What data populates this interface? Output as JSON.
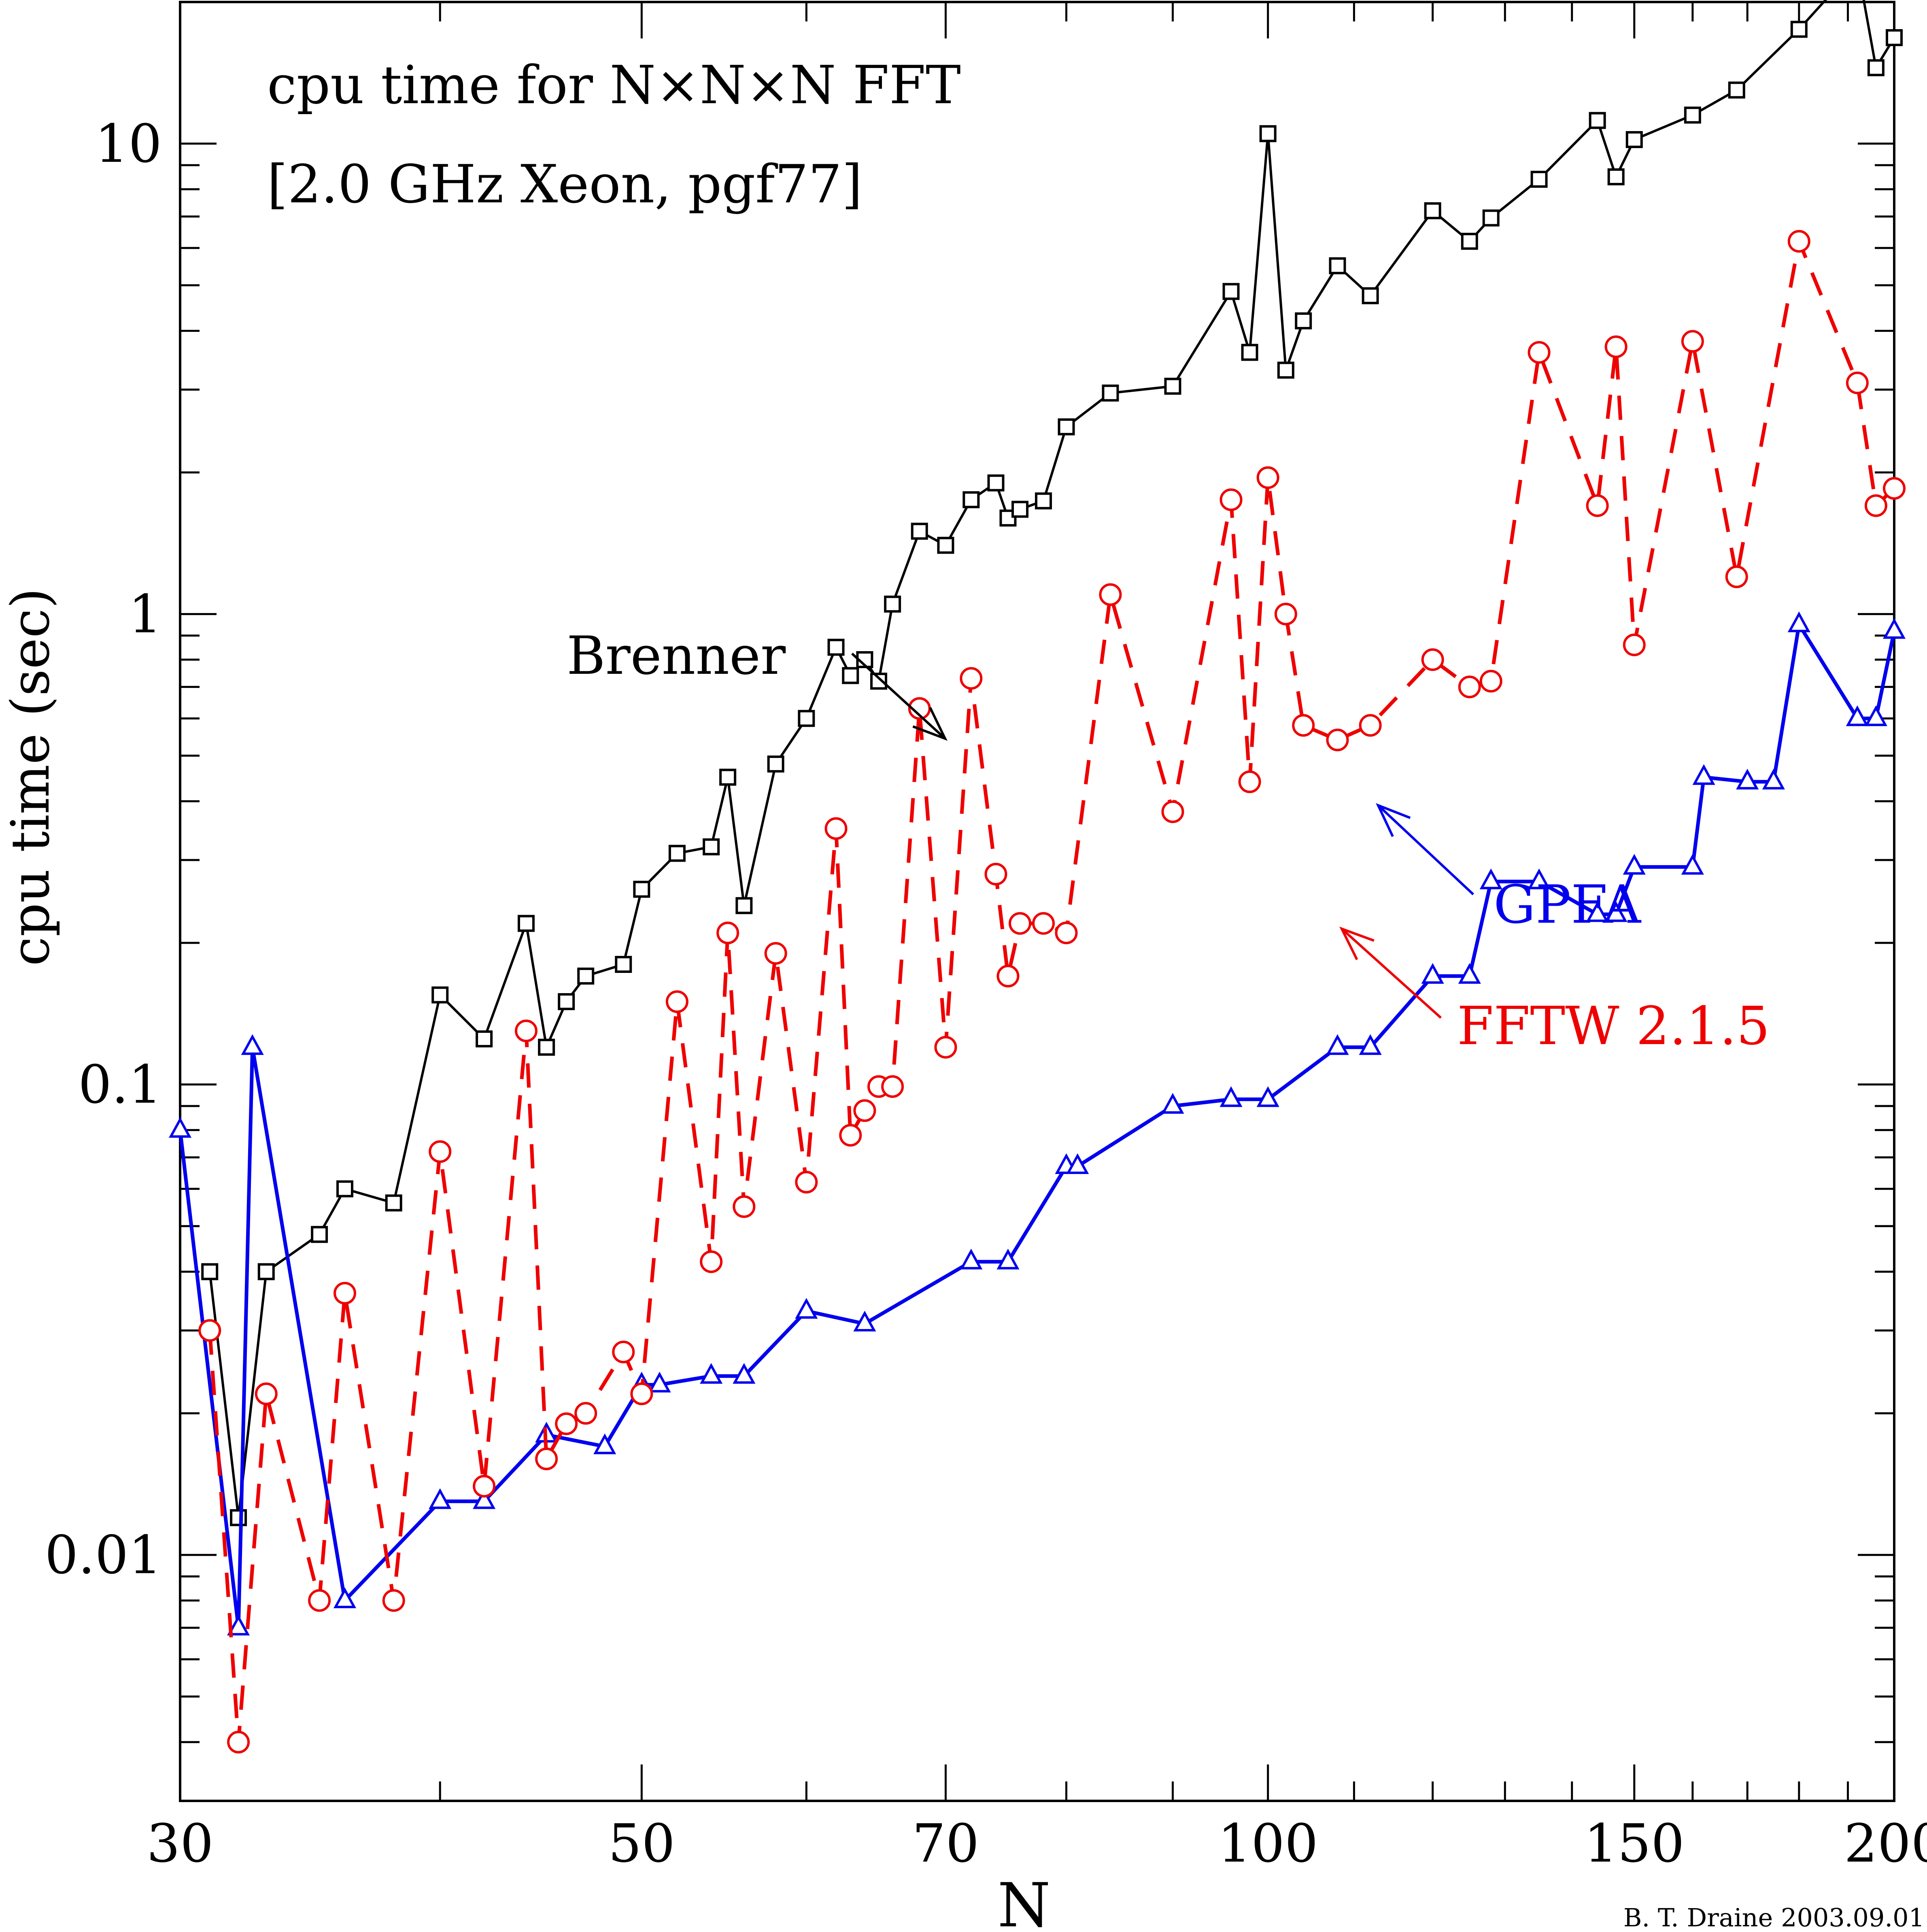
{
  "chart_data": {
    "type": "line",
    "title_line1": "cpu time for N×N×N FFT",
    "title_line2": "[2.0 GHz Xeon, pgf77]",
    "xlabel": "N",
    "ylabel": "cpu time (sec)",
    "xscale": "log",
    "yscale": "log",
    "xlim": [
      30,
      200
    ],
    "ylim": [
      0.003,
      20
    ],
    "xticks": [
      {
        "v": 30,
        "label": "30"
      },
      {
        "v": 50,
        "label": "50"
      },
      {
        "v": 70,
        "label": "70"
      },
      {
        "v": 100,
        "label": "100"
      },
      {
        "v": 150,
        "label": "150"
      },
      {
        "v": 200,
        "label": "200"
      }
    ],
    "yticks": [
      {
        "v": 0.01,
        "label": "0.01"
      },
      {
        "v": 0.1,
        "label": "0.1"
      },
      {
        "v": 1,
        "label": "1"
      },
      {
        "v": 10,
        "label": "10"
      }
    ],
    "credit": "B. T. Draine 2003.09.01",
    "series": [
      {
        "name": "Brenner",
        "color": "#000000",
        "marker": "square",
        "dashed": false,
        "points": [
          [
            31,
            0.04
          ],
          [
            32,
            0.012
          ],
          [
            33,
            0.04
          ],
          [
            35,
            0.048
          ],
          [
            36,
            0.06
          ],
          [
            38,
            0.056
          ],
          [
            40,
            0.155
          ],
          [
            42,
            0.125
          ],
          [
            44,
            0.22
          ],
          [
            45,
            0.12
          ],
          [
            46,
            0.15
          ],
          [
            47,
            0.17
          ],
          [
            49,
            0.18
          ],
          [
            50,
            0.26
          ],
          [
            52,
            0.31
          ],
          [
            54,
            0.32
          ],
          [
            55,
            0.45
          ],
          [
            56,
            0.24
          ],
          [
            58,
            0.48
          ],
          [
            60,
            0.6
          ],
          [
            62,
            0.85
          ],
          [
            63,
            0.74
          ],
          [
            64,
            0.8
          ],
          [
            65,
            0.72
          ],
          [
            66,
            1.05
          ],
          [
            68,
            1.5
          ],
          [
            70,
            1.4
          ],
          [
            72,
            1.75
          ],
          [
            74,
            1.9
          ],
          [
            75,
            1.6
          ],
          [
            76,
            1.67
          ],
          [
            78,
            1.74
          ],
          [
            80,
            2.5
          ],
          [
            84,
            2.95
          ],
          [
            90,
            3.05
          ],
          [
            96,
            4.85
          ],
          [
            98,
            3.6
          ],
          [
            100,
            10.5
          ],
          [
            102,
            3.3
          ],
          [
            104,
            4.2
          ],
          [
            108,
            5.5
          ],
          [
            112,
            4.75
          ],
          [
            120,
            7.2
          ],
          [
            125,
            6.2
          ],
          [
            128,
            6.95
          ],
          [
            135,
            8.4
          ],
          [
            144,
            11.2
          ],
          [
            147,
            8.5
          ],
          [
            150,
            10.2
          ],
          [
            160,
            11.5
          ],
          [
            168,
            13
          ],
          [
            180,
            17.5
          ],
          [
            192,
            24
          ],
          [
            196,
            14.5
          ],
          [
            200,
            16.8
          ]
        ]
      },
      {
        "name": "GPFA",
        "color": "#0000ee",
        "marker": "triangle",
        "dashed": false,
        "points": [
          [
            30,
            0.08
          ],
          [
            32,
            0.007
          ],
          [
            32.5,
            0.12
          ],
          [
            36,
            0.008
          ],
          [
            40,
            0.013
          ],
          [
            42,
            0.013
          ],
          [
            45,
            0.018
          ],
          [
            48,
            0.017
          ],
          [
            50,
            0.023
          ],
          [
            51,
            0.023
          ],
          [
            54,
            0.024
          ],
          [
            56,
            0.024
          ],
          [
            60,
            0.033
          ],
          [
            64,
            0.031
          ],
          [
            72,
            0.042
          ],
          [
            75,
            0.042
          ],
          [
            80,
            0.067
          ],
          [
            81,
            0.067
          ],
          [
            90,
            0.09
          ],
          [
            96,
            0.093
          ],
          [
            100,
            0.093
          ],
          [
            108,
            0.12
          ],
          [
            112,
            0.12
          ],
          [
            120,
            0.17
          ],
          [
            125,
            0.17
          ],
          [
            128,
            0.27
          ],
          [
            135,
            0.27
          ],
          [
            144,
            0.23
          ],
          [
            147,
            0.23
          ],
          [
            150,
            0.29
          ],
          [
            160,
            0.29
          ],
          [
            162,
            0.45
          ],
          [
            170,
            0.44
          ],
          [
            175,
            0.44
          ],
          [
            180,
            0.95
          ],
          [
            192,
            0.6
          ],
          [
            196,
            0.6
          ],
          [
            200,
            0.92
          ]
        ]
      },
      {
        "name": "FFTW 2.1.5",
        "color": "#ee0000",
        "marker": "circle",
        "dashed": true,
        "points": [
          [
            31,
            0.03
          ],
          [
            32,
            0.004
          ],
          [
            33,
            0.022
          ],
          [
            35,
            0.008
          ],
          [
            36,
            0.036
          ],
          [
            38,
            0.008
          ],
          [
            40,
            0.072
          ],
          [
            42,
            0.014
          ],
          [
            44,
            0.13
          ],
          [
            45,
            0.016
          ],
          [
            46,
            0.019
          ],
          [
            47,
            0.02
          ],
          [
            49,
            0.027
          ],
          [
            50,
            0.022
          ],
          [
            52,
            0.15
          ],
          [
            54,
            0.042
          ],
          [
            55,
            0.21
          ],
          [
            56,
            0.055
          ],
          [
            58,
            0.19
          ],
          [
            60,
            0.062
          ],
          [
            62,
            0.35
          ],
          [
            63,
            0.078
          ],
          [
            64,
            0.088
          ],
          [
            65,
            0.099
          ],
          [
            66,
            0.099
          ],
          [
            68,
            0.63
          ],
          [
            70,
            0.12
          ],
          [
            72,
            0.73
          ],
          [
            74,
            0.28
          ],
          [
            75,
            0.17
          ],
          [
            76,
            0.22
          ],
          [
            78,
            0.22
          ],
          [
            80,
            0.21
          ],
          [
            84,
            1.1
          ],
          [
            90,
            0.38
          ],
          [
            96,
            1.75
          ],
          [
            98,
            0.44
          ],
          [
            100,
            1.95
          ],
          [
            102,
            1.0
          ],
          [
            104,
            0.58
          ],
          [
            108,
            0.54
          ],
          [
            112,
            0.58
          ],
          [
            120,
            0.8
          ],
          [
            125,
            0.7
          ],
          [
            128,
            0.72
          ],
          [
            135,
            3.6
          ],
          [
            144,
            1.7
          ],
          [
            147,
            3.7
          ],
          [
            150,
            0.86
          ],
          [
            160,
            3.8
          ],
          [
            168,
            1.2
          ],
          [
            180,
            6.2
          ],
          [
            192,
            3.1
          ],
          [
            196,
            1.7
          ],
          [
            200,
            1.85
          ]
        ]
      }
    ],
    "annotations": [
      {
        "label": "Brenner",
        "color": "#000000"
      },
      {
        "label": "GPFA",
        "color": "#0000ee"
      },
      {
        "label": "FFTW 2.1.5",
        "color": "#ee0000"
      }
    ]
  }
}
